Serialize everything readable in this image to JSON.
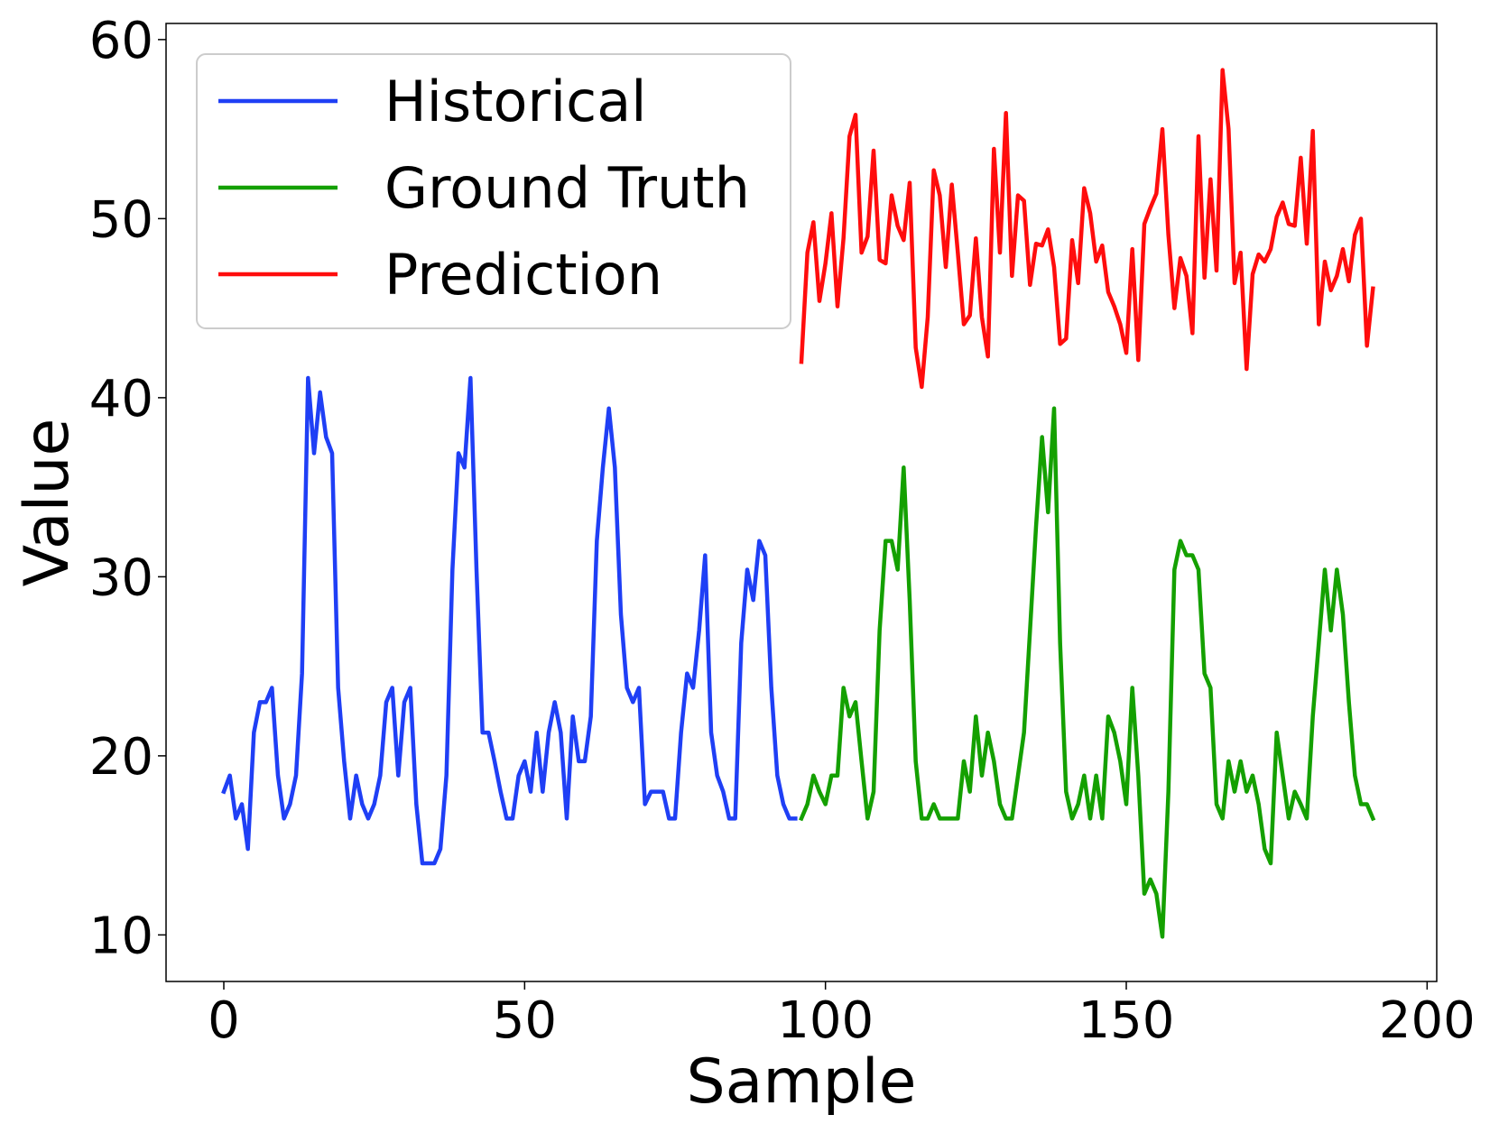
{
  "chart_data": {
    "type": "line",
    "title": "",
    "xlabel": "Sample",
    "ylabel": "Value",
    "xlim": [
      -9.6,
      201.6
    ],
    "ylim": [
      7.4,
      60.9
    ],
    "xticks": [
      0,
      50,
      100,
      150,
      200
    ],
    "yticks": [
      10,
      20,
      30,
      40,
      50,
      60
    ],
    "grid": false,
    "legend_position": "top-left",
    "series": [
      {
        "name": "Historical",
        "color": "#1f3ff5",
        "x_start": 0,
        "values": [
          18.0,
          18.9,
          16.5,
          17.3,
          14.8,
          21.3,
          23.0,
          23.0,
          23.8,
          18.9,
          16.5,
          17.3,
          18.9,
          24.6,
          41.1,
          36.9,
          40.3,
          37.8,
          36.9,
          23.8,
          19.7,
          16.5,
          18.9,
          17.3,
          16.5,
          17.3,
          18.9,
          23.0,
          23.8,
          18.9,
          23.0,
          23.8,
          17.3,
          14.0,
          14.0,
          14.0,
          14.8,
          18.9,
          30.4,
          36.9,
          36.1,
          41.1,
          30.4,
          21.3,
          21.3,
          19.7,
          18.0,
          16.5,
          16.5,
          18.9,
          19.7,
          18.0,
          21.3,
          18.0,
          21.3,
          23.0,
          21.3,
          16.5,
          22.2,
          19.7,
          19.7,
          22.2,
          32.0,
          36.1,
          39.4,
          36.1,
          27.9,
          23.8,
          23.0,
          23.8,
          17.3,
          18.0,
          18.0,
          18.0,
          16.5,
          16.5,
          21.3,
          24.6,
          23.8,
          27.0,
          31.2,
          21.3,
          18.9,
          18.0,
          16.5,
          16.5,
          26.3,
          30.4,
          28.7,
          32.0,
          31.2,
          23.8,
          18.9,
          17.3,
          16.5,
          16.5
        ]
      },
      {
        "name": "Ground Truth",
        "color": "#14a000",
        "x_start": 96,
        "values": [
          16.5,
          17.3,
          18.9,
          18.0,
          17.3,
          18.9,
          18.9,
          23.8,
          22.2,
          23.0,
          19.7,
          16.5,
          18.0,
          27.0,
          32.0,
          32.0,
          30.4,
          36.1,
          28.7,
          19.7,
          16.5,
          16.5,
          17.3,
          16.5,
          16.5,
          16.5,
          16.5,
          19.7,
          18.0,
          22.2,
          18.9,
          21.3,
          19.7,
          17.3,
          16.5,
          16.5,
          18.9,
          21.3,
          27.0,
          32.8,
          37.8,
          33.6,
          39.4,
          26.3,
          18.0,
          16.5,
          17.3,
          18.9,
          16.5,
          18.9,
          16.5,
          22.2,
          21.3,
          19.7,
          17.3,
          23.8,
          18.9,
          12.3,
          13.1,
          12.3,
          9.9,
          18.0,
          30.4,
          32.0,
          31.2,
          31.2,
          30.4,
          24.6,
          23.8,
          17.3,
          16.5,
          19.7,
          18.0,
          19.7,
          18.0,
          18.9,
          17.3,
          14.8,
          14.0,
          21.3,
          18.9,
          16.5,
          18.0,
          17.3,
          16.5,
          22.2,
          26.3,
          30.4,
          27.0,
          30.4,
          27.9,
          23.0,
          18.9,
          17.3,
          17.3,
          16.5
        ]
      },
      {
        "name": "Prediction",
        "color": "#ff0d0d",
        "x_start": 96,
        "values": [
          42.0,
          48.1,
          49.8,
          45.4,
          47.5,
          50.3,
          45.1,
          48.9,
          54.6,
          55.8,
          48.1,
          49.0,
          53.8,
          47.7,
          47.5,
          51.3,
          49.6,
          48.8,
          52.0,
          42.8,
          40.6,
          44.5,
          52.7,
          51.3,
          47.3,
          51.9,
          48.1,
          44.1,
          44.6,
          48.9,
          44.5,
          42.3,
          53.9,
          48.1,
          55.9,
          46.8,
          51.3,
          51.0,
          46.3,
          48.6,
          48.5,
          49.4,
          47.3,
          43.0,
          43.3,
          48.8,
          46.4,
          51.7,
          50.3,
          47.6,
          48.5,
          45.9,
          45.1,
          44.1,
          42.5,
          48.3,
          42.1,
          49.7,
          50.6,
          51.4,
          55.0,
          49.1,
          45.0,
          47.8,
          46.8,
          43.6,
          54.6,
          46.7,
          52.2,
          47.1,
          58.3,
          55.0,
          46.4,
          48.1,
          41.6,
          46.9,
          48.0,
          47.6,
          48.3,
          50.1,
          50.9,
          49.7,
          49.6,
          53.4,
          48.6,
          54.9,
          44.1,
          47.6,
          46.0,
          46.8,
          48.3,
          46.5,
          49.1,
          50.0,
          42.9,
          46.1
        ]
      }
    ]
  }
}
